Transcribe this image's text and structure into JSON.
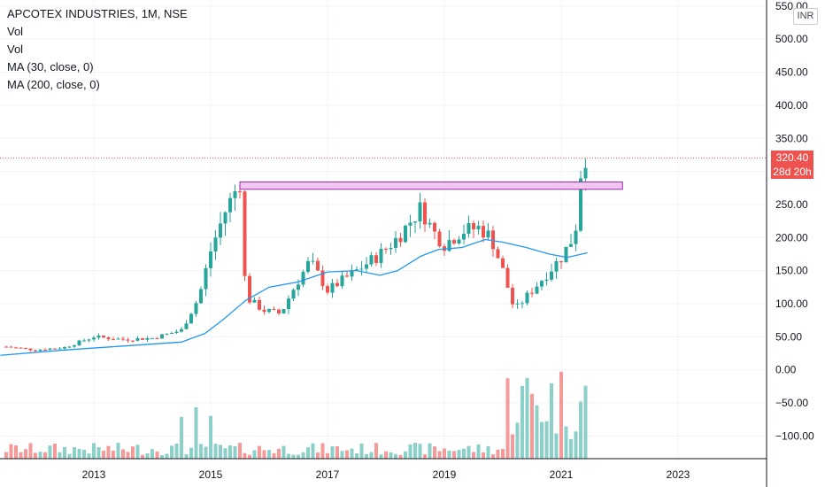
{
  "legend": {
    "symbol": "APCOTEX INDUSTRIES, 1M, NSE",
    "line2": "Vol",
    "line3": "Vol",
    "line4": "MA (30, close, 0)",
    "line5": "MA (200, close, 0)"
  },
  "currency": "INR",
  "last_price": {
    "price": "320.40",
    "countdown": "28d 20h"
  },
  "colors": {
    "up": "#26a69a",
    "down": "#ef5350",
    "ma": "#2196f3",
    "zone_fill": "#f1c6f0",
    "zone_stroke": "#9c27b0"
  },
  "chart_data": {
    "type": "candlestick",
    "title": "APCOTEX INDUSTRIES, 1M, NSE",
    "interval": "1M",
    "ylim": [
      -140,
      560
    ],
    "y_ticks": [
      "550.00",
      "500.00",
      "450.00",
      "400.00",
      "350.00",
      "300.00",
      "250.00",
      "200.00",
      "150.00",
      "100.00",
      "50.00",
      "0.00",
      "−50.00",
      "−100.00"
    ],
    "y_tick_values": [
      550,
      500,
      450,
      400,
      350,
      300,
      250,
      200,
      150,
      100,
      50,
      0,
      -50,
      -100
    ],
    "x_ticks": [
      "2013",
      "2015",
      "2017",
      "2019",
      "2021",
      "2023"
    ],
    "x_tick_values": [
      2013,
      2015,
      2017,
      2019,
      2021,
      2023
    ],
    "xlim": [
      2011.4,
      2024.35
    ],
    "anchors": [
      [
        2011.5,
        35
      ],
      [
        2012.0,
        30
      ],
      [
        2012.5,
        34
      ],
      [
        2013.0,
        50
      ],
      [
        2013.5,
        46
      ],
      [
        2014.0,
        48
      ],
      [
        2014.5,
        60
      ],
      [
        2014.8,
        110
      ],
      [
        2015.0,
        180
      ],
      [
        2015.25,
        240
      ],
      [
        2015.5,
        285
      ],
      [
        2015.6,
        110
      ],
      [
        2015.9,
        90
      ],
      [
        2016.2,
        85
      ],
      [
        2016.4,
        120
      ],
      [
        2016.7,
        165
      ],
      [
        2017.0,
        120
      ],
      [
        2017.5,
        150
      ],
      [
        2017.9,
        175
      ],
      [
        2018.2,
        200
      ],
      [
        2018.6,
        245
      ],
      [
        2018.8,
        210
      ],
      [
        2019.0,
        190
      ],
      [
        2019.3,
        210
      ],
      [
        2019.6,
        215
      ],
      [
        2019.8,
        200
      ],
      [
        2020.0,
        150
      ],
      [
        2020.2,
        90
      ],
      [
        2020.5,
        120
      ],
      [
        2020.8,
        150
      ],
      [
        2021.0,
        170
      ],
      [
        2021.2,
        200
      ],
      [
        2021.3,
        235
      ],
      [
        2021.35,
        330
      ],
      [
        2021.45,
        320.4
      ]
    ],
    "ma_line": {
      "name": "MA (30, close, 0)",
      "points": [
        [
          2011.4,
          22
        ],
        [
          2012.5,
          30
        ],
        [
          2013.5,
          36
        ],
        [
          2014.5,
          42
        ],
        [
          2014.9,
          55
        ],
        [
          2015.2,
          75
        ],
        [
          2015.6,
          105
        ],
        [
          2016.0,
          125
        ],
        [
          2016.5,
          133
        ],
        [
          2017.0,
          148
        ],
        [
          2017.5,
          150
        ],
        [
          2017.9,
          143
        ],
        [
          2018.2,
          150
        ],
        [
          2018.6,
          172
        ],
        [
          2018.9,
          182
        ],
        [
          2019.3,
          185
        ],
        [
          2019.7,
          197
        ],
        [
          2020.0,
          193
        ],
        [
          2020.4,
          185
        ],
        [
          2020.8,
          175
        ],
        [
          2021.1,
          170
        ],
        [
          2021.45,
          177
        ]
      ]
    },
    "zone": {
      "x": [
        2015.5,
        2022.05
      ],
      "y": [
        273,
        284
      ]
    },
    "last_price_value": 320.4
  }
}
